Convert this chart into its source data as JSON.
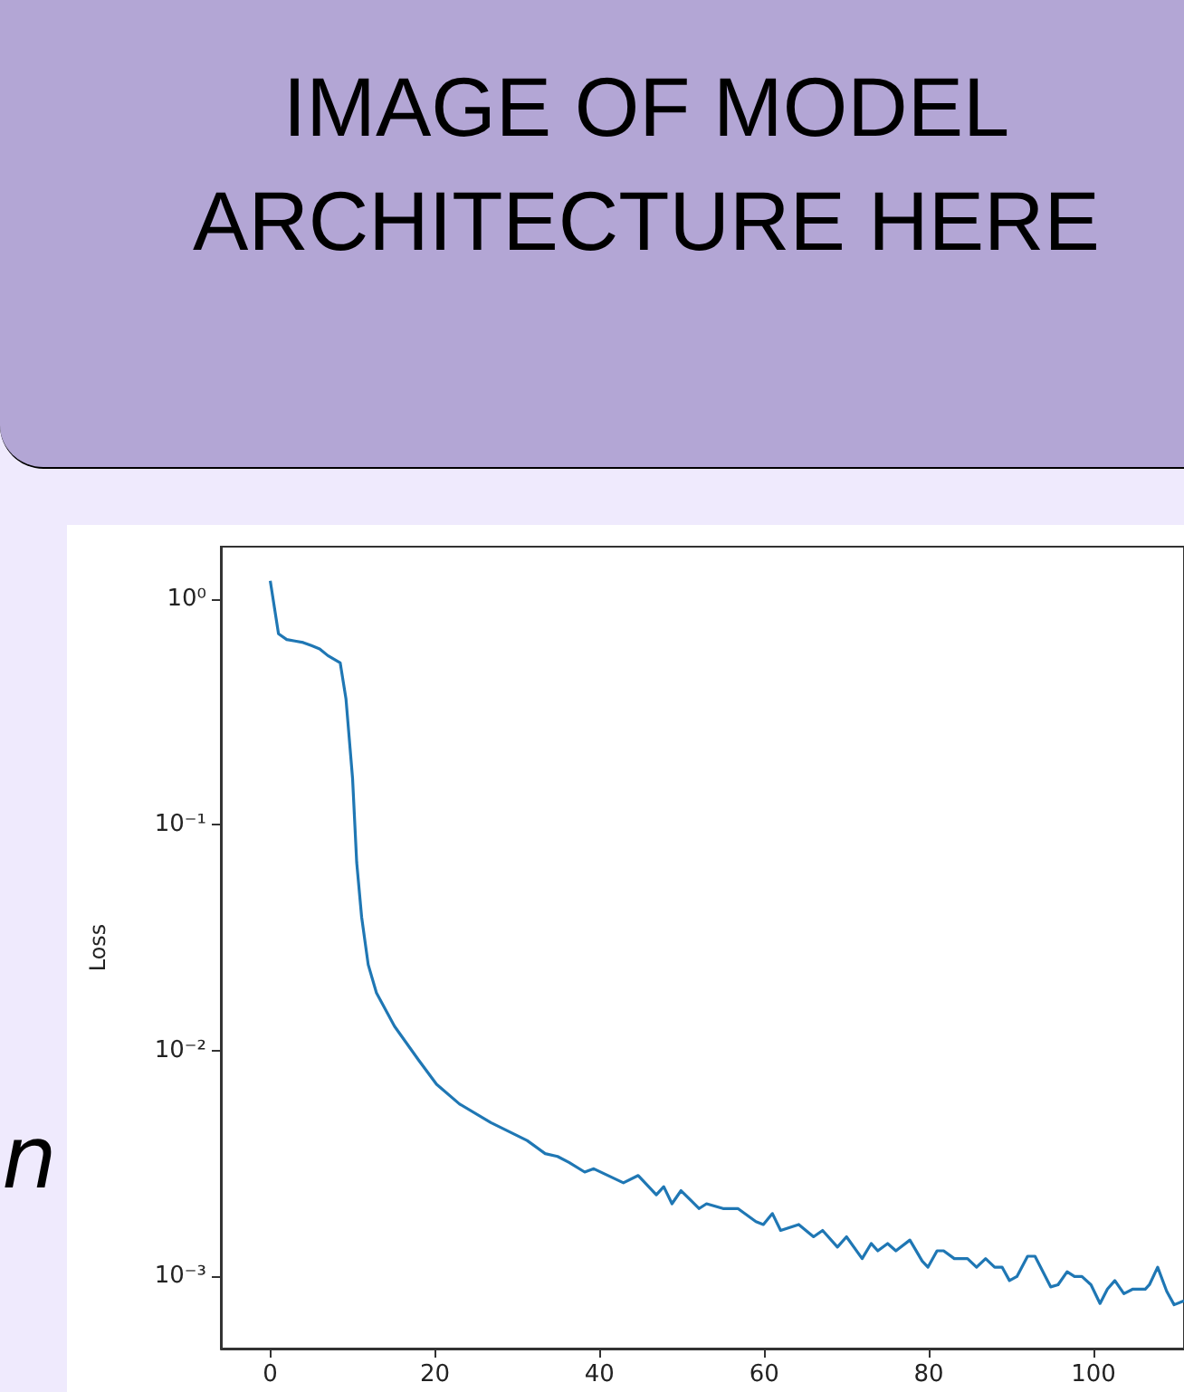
{
  "chart_data": {
    "type": "line",
    "ylabel": "Loss",
    "log": "y",
    "annotations": [
      "IMAGE OF MODEL ARCHITECTURE HERE",
      "n"
    ],
    "xlim": [
      -6,
      111
    ],
    "xticks": [
      0,
      20,
      40,
      60,
      80,
      100
    ],
    "ylim": [
      0.00048,
      1.7
    ],
    "yticks": [
      {
        "value": 1,
        "label": "10⁰"
      },
      {
        "value": 0.1,
        "label": "10⁻¹"
      },
      {
        "value": 0.01,
        "label": "10⁻²"
      },
      {
        "value": 0.001,
        "label": "10⁻³"
      }
    ],
    "series": [
      {
        "color": "#1f77b4",
        "x": [
          0,
          1,
          2,
          3,
          4,
          5,
          6,
          7,
          8.5,
          9.2,
          10,
          10.5,
          11.1,
          11.9,
          12.9,
          15.1,
          18,
          20.2,
          23,
          26.8,
          31.2,
          33.4,
          34.9,
          36.3,
          38.2,
          39.3,
          42.9,
          44.7,
          46.9,
          47.8,
          48.8,
          49.9,
          52.1,
          53,
          55,
          56.8,
          59,
          59.9,
          61,
          62,
          64.2,
          66,
          67.1,
          68.9,
          70,
          71.9,
          73,
          73.8,
          75,
          76,
          77.7,
          79.2,
          79.9,
          81,
          81.8,
          83.1,
          84.7,
          85.8,
          86.9,
          88,
          88.9,
          89.8,
          90.7,
          92,
          92.9,
          94.8,
          95.7,
          96.8,
          97.7,
          98.6,
          99.7,
          100.8,
          101.7,
          102.6,
          103.7,
          104.8,
          106.3,
          106.8,
          107.8,
          108.9,
          109.8,
          111
        ],
        "values": [
          1.2,
          0.7,
          0.66,
          0.65,
          0.64,
          0.62,
          0.6,
          0.56,
          0.52,
          0.36,
          0.16,
          0.068,
          0.039,
          0.024,
          0.018,
          0.0128,
          0.0091,
          0.0071,
          0.0058,
          0.0048,
          0.004,
          0.0035,
          0.0034,
          0.0032,
          0.0029,
          0.003,
          0.0026,
          0.0028,
          0.0023,
          0.0025,
          0.0021,
          0.0024,
          0.002,
          0.0021,
          0.002,
          0.002,
          0.00175,
          0.0017,
          0.0019,
          0.0016,
          0.0017,
          0.0015,
          0.0016,
          0.00135,
          0.0015,
          0.0012,
          0.0014,
          0.0013,
          0.0014,
          0.0013,
          0.00145,
          0.00117,
          0.0011,
          0.0013,
          0.0013,
          0.0012,
          0.0012,
          0.0011,
          0.0012,
          0.0011,
          0.0011,
          0.00096,
          0.001,
          0.00123,
          0.00123,
          0.0009,
          0.00092,
          0.00105,
          0.001,
          0.001,
          0.00092,
          0.00076,
          0.00088,
          0.00096,
          0.00084,
          0.00088,
          0.00088,
          0.00092,
          0.0011,
          0.00086,
          0.00075,
          0.00078
        ]
      }
    ]
  }
}
